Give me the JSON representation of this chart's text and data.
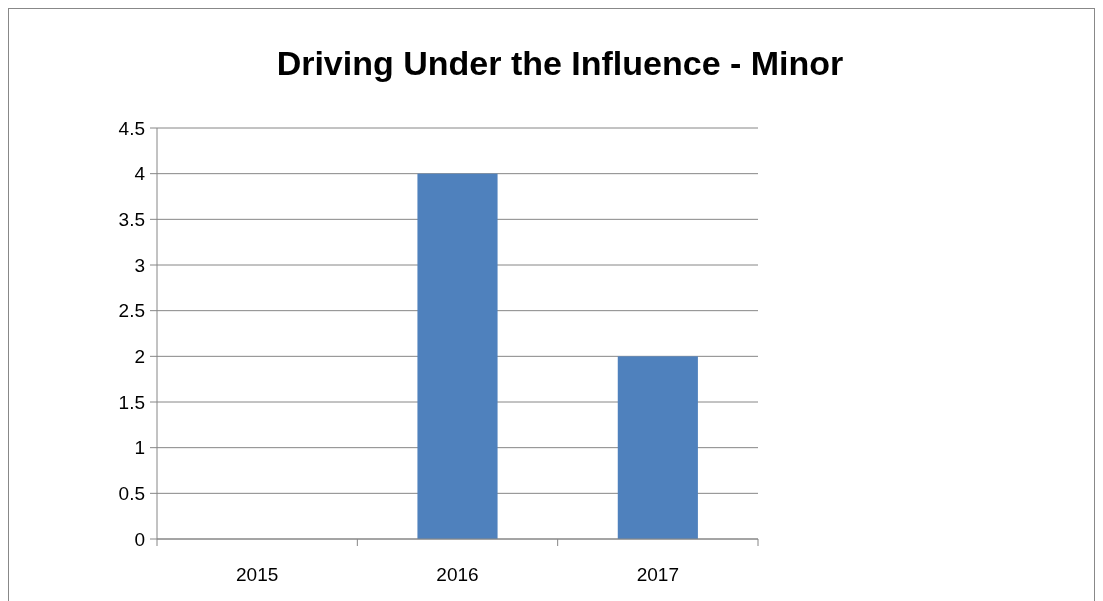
{
  "chart_data": {
    "type": "bar",
    "title": "Driving Under the Influence - Minor",
    "categories": [
      "2015",
      "2016",
      "2017"
    ],
    "values": [
      0,
      4,
      2
    ],
    "color": "#4f81bd",
    "ylim": [
      0,
      4.5
    ],
    "yticks": [
      0,
      0.5,
      1,
      1.5,
      2,
      2.5,
      3,
      3.5,
      4,
      4.5
    ],
    "grid": "y"
  }
}
